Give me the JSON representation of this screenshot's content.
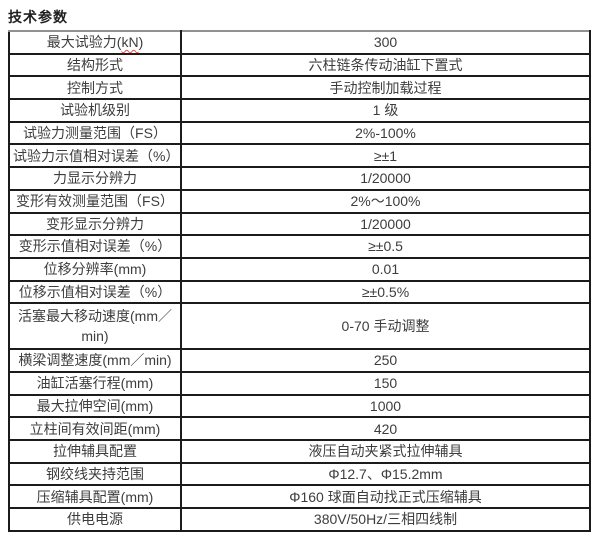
{
  "page": {
    "title": "技术参数"
  },
  "colors": {
    "background": "#ffffff",
    "border": "#1b1b1b",
    "border_top_outer": "#919191",
    "text": "#3d3d3d",
    "squiggle_underline": "#d9544f"
  },
  "table": {
    "rows": [
      {
        "label": "最大试验力(kN)",
        "label_prefix": "最大试验力(",
        "label_wavy": "kN",
        "label_suffix": ")",
        "value": "300"
      },
      {
        "label": "结构形式",
        "value": "六柱链条传动油缸下置式"
      },
      {
        "label": "控制方式",
        "value": "手动控制加载过程"
      },
      {
        "label": "试验机级别",
        "value": "1 级"
      },
      {
        "label": "试验力测量范围（FS）",
        "value": "2%-100%"
      },
      {
        "label": "试验力示值相对误差（%）",
        "value": "≥±1"
      },
      {
        "label": "力显示分辨力",
        "value": "1/20000"
      },
      {
        "label": "变形有效测量范围（FS）",
        "value": "2%～100%"
      },
      {
        "label": "变形显示分辨力",
        "value": "1/20000"
      },
      {
        "label": "变形示值相对误差（%）",
        "value": "≥±0.5"
      },
      {
        "label": "位移分辨率(mm)",
        "value": "0.01"
      },
      {
        "label": "位移示值相对误差（%）",
        "value": "≥±0.5%"
      },
      {
        "label": "活塞最大移动速度(mm／min)",
        "value": "0-70 手动调整",
        "tall": true
      },
      {
        "label": "横梁调整速度(mm／min)",
        "value": "250"
      },
      {
        "label": "油缸活塞行程(mm)",
        "value": "150"
      },
      {
        "label": "最大拉伸空间(mm)",
        "value": "1000"
      },
      {
        "label": "立柱间有效间距(mm)",
        "value": "420"
      },
      {
        "label": "拉伸辅具配置",
        "value": "液压自动夹紧式拉伸辅具"
      },
      {
        "label": "钢绞线夹持范围",
        "value": "Φ12.7、Φ15.2mm"
      },
      {
        "label": "压缩辅具配置(mm)",
        "value": "Φ160 球面自动找正式压缩辅具"
      },
      {
        "label": "供电电源",
        "value": "380V/50Hz/三相四线制"
      }
    ]
  }
}
